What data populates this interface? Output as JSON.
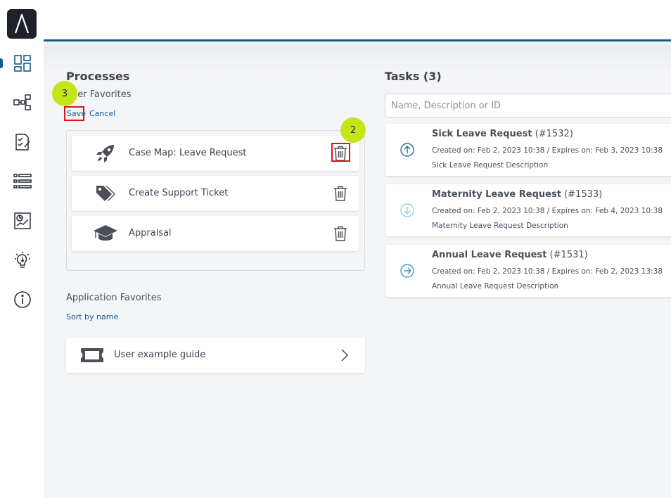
{
  "sidebar": {
    "logo_icon": "lambda-logo-icon",
    "items": [
      {
        "icon": "dashboard-icon",
        "active": true
      },
      {
        "icon": "process-map-icon",
        "active": false
      },
      {
        "icon": "tasks-checklist-icon",
        "active": false
      },
      {
        "icon": "list-icon",
        "active": false
      },
      {
        "icon": "report-chart-icon",
        "active": false
      },
      {
        "icon": "lightbulb-icon",
        "active": false
      },
      {
        "icon": "info-icon",
        "active": false
      }
    ]
  },
  "processes": {
    "title": "Processes",
    "user_favorites_label": "User Favorites",
    "save_label": "Save",
    "cancel_label": "Cancel",
    "favorites": [
      {
        "icon": "rocket-icon",
        "label": "Case Map: Leave Request"
      },
      {
        "icon": "tags-icon",
        "label": "Create Support Ticket"
      },
      {
        "icon": "graduation-cap-icon",
        "label": "Appraisal"
      }
    ],
    "application_favorites_label": "Application Favorites",
    "sort_label": "Sort by name",
    "app_favorites": [
      {
        "icon": "ticket-icon",
        "label": "User example guide"
      }
    ]
  },
  "tasks": {
    "title": "Tasks (3)",
    "search_placeholder": "Name, Description or ID",
    "items": [
      {
        "name": "Sick Leave Request",
        "id": "(#1532)",
        "meta": "Created on: Feb 2, 2023 10:38 / Expires on: Feb 3, 2023 10:38",
        "description": "Sick Leave Request Description",
        "priority_icon": "arrow-up-circle-icon"
      },
      {
        "name": "Maternity Leave Request",
        "id": "(#1533)",
        "meta": "Created on: Feb 2, 2023 10:38 / Expires on: Feb 4, 2023 10:38",
        "description": "Maternity Leave Request Description",
        "priority_icon": "arrow-down-circle-icon"
      },
      {
        "name": "Annual Leave Request",
        "id": "(#1531)",
        "meta": "Created on: Feb 2, 2023 10:38 / Expires on: Feb 2, 2023 13:38",
        "description": "Annual Leave Request Description",
        "priority_icon": "arrow-right-circle-icon"
      }
    ]
  },
  "annotations": {
    "step_save": "3",
    "step_delete": "2"
  },
  "colors": {
    "accent": "#0f5d8c",
    "highlight": "#e0141e",
    "badge": "#c4e619"
  }
}
